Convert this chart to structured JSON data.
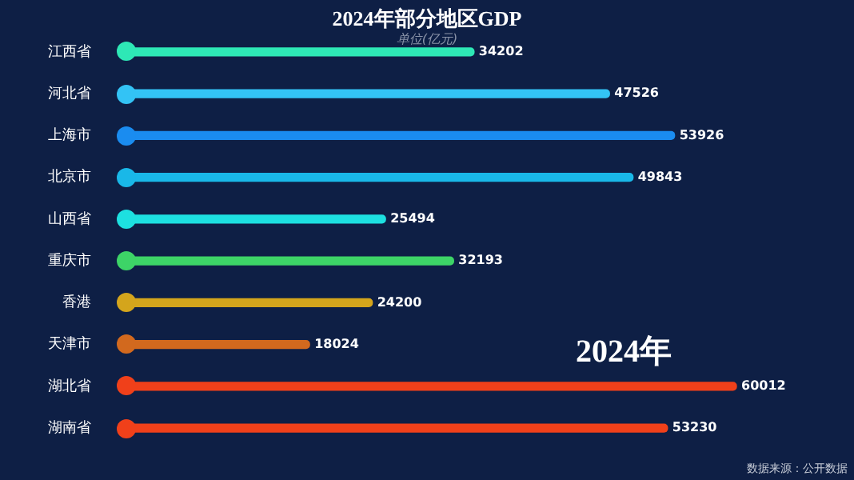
{
  "chart_data": {
    "type": "bar",
    "orientation": "horizontal",
    "title": "2024年部分地区GDP",
    "subtitle": "单位(亿元)",
    "categories": [
      "江西省",
      "河北省",
      "上海市",
      "北京市",
      "山西省",
      "重庆市",
      "香港",
      "天津市",
      "湖北省",
      "湖南省"
    ],
    "values": [
      34202,
      47526,
      53926,
      49843,
      25494,
      32193,
      24200,
      18024,
      60012,
      53230
    ],
    "colors": [
      "#2ee8b6",
      "#33c3f5",
      "#1a8cf0",
      "#19b8e8",
      "#1de0e0",
      "#3dd467",
      "#d4a51c",
      "#d2691e",
      "#f0401a",
      "#f0401a"
    ],
    "tick_labels": "y",
    "data_labels": true,
    "legend": false,
    "annotations": [
      "2024年",
      "数据来源：公开数据"
    ]
  }
}
